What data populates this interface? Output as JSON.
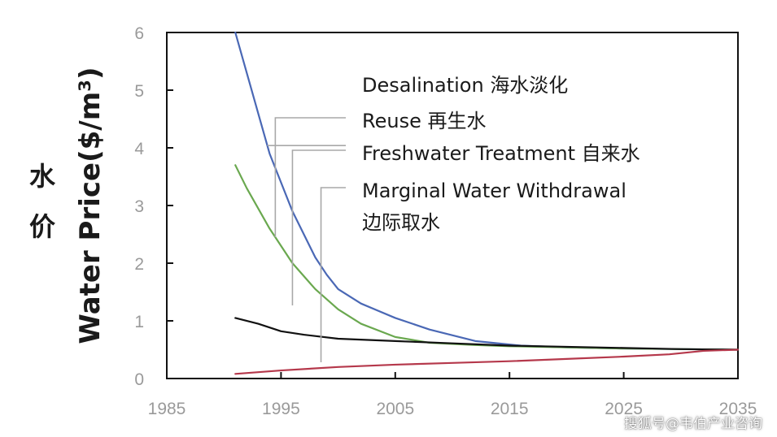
{
  "chart_data": {
    "type": "line",
    "ylabel_en": "Water Price($/m³)",
    "ylabel_cn": [
      "水",
      "价"
    ],
    "xlim": [
      1985,
      2035
    ],
    "ylim": [
      0,
      6
    ],
    "x_ticks": [
      "1985",
      "1995",
      "2005",
      "2015",
      "2025",
      "2035"
    ],
    "y_ticks": [
      "0",
      "1",
      "2",
      "3",
      "4",
      "5",
      "6"
    ],
    "grid": false,
    "series": [
      {
        "name": "Desalination 海水淡化",
        "color": "#4a68b5",
        "x": [
          1991,
          1992,
          1993,
          1994,
          1995,
          1996,
          1997,
          1998,
          1999,
          2000,
          2002,
          2005,
          2008,
          2012,
          2016,
          2020,
          2025,
          2030,
          2035
        ],
        "y": [
          6.0,
          5.3,
          4.6,
          3.9,
          3.4,
          2.9,
          2.5,
          2.1,
          1.8,
          1.55,
          1.3,
          1.05,
          0.85,
          0.65,
          0.57,
          0.54,
          0.52,
          0.51,
          0.5
        ],
        "label_anchor_x": 1998
      },
      {
        "name": "Reuse 再生水",
        "color": "#6aa84f",
        "x": [
          1991,
          1992,
          1994,
          1996,
          1998,
          2000,
          2002,
          2005,
          2008,
          2012,
          2015,
          2020,
          2025,
          2030,
          2035
        ],
        "y": [
          3.7,
          3.3,
          2.6,
          2.0,
          1.55,
          1.2,
          0.95,
          0.72,
          0.62,
          0.58,
          0.56,
          0.54,
          0.52,
          0.51,
          0.5
        ],
        "label_anchor_x": 1994.5
      },
      {
        "name": "Freshwater Treatment 自来水",
        "color": "#111111",
        "x": [
          1991,
          1993,
          1995,
          1997,
          2000,
          2005,
          2010,
          2015,
          2020,
          2025,
          2030,
          2035
        ],
        "y": [
          1.05,
          0.95,
          0.82,
          0.76,
          0.69,
          0.65,
          0.61,
          0.57,
          0.55,
          0.53,
          0.51,
          0.5
        ],
        "label_anchor_x": 1996
      },
      {
        "name": "Marginal Water Withdrawal",
        "name_cn": "边际取水",
        "color": "#b5384b",
        "x": [
          1991,
          1995,
          2000,
          2005,
          2010,
          2015,
          2020,
          2025,
          2029,
          2032,
          2035
        ],
        "y": [
          0.08,
          0.14,
          0.2,
          0.24,
          0.27,
          0.3,
          0.34,
          0.38,
          0.42,
          0.48,
          0.5
        ],
        "label_anchor_x": 1998.5
      }
    ]
  },
  "watermark": "搜狐号@韦伯产业咨询"
}
